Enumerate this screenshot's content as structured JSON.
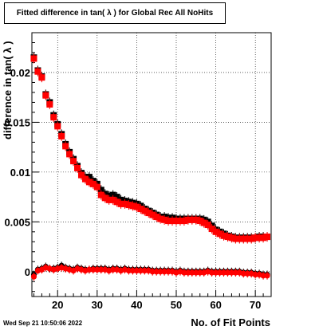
{
  "header": {
    "title": "Fitted difference in tan( λ ) for Global Rec All NoHits"
  },
  "footer": {
    "timestamp": "Wed Sep 21 10:50:06 2022"
  },
  "chart_data": {
    "type": "scatter",
    "title": "Fitted difference in tan( λ ) for Global Rec All NoHits",
    "xlabel": "No. of Fit Points",
    "ylabel": "difference in tan( λ )",
    "xlim": [
      13.5,
      74
    ],
    "ylim": [
      -0.0025,
      0.024
    ],
    "xticks": [
      20,
      30,
      40,
      50,
      60,
      70
    ],
    "yticks": [
      0,
      0.005,
      0.01,
      0.015,
      0.02
    ],
    "ytick_labels": [
      "0",
      "0.005",
      "0.01",
      "0.015",
      "0.02"
    ],
    "grid": true,
    "colors": {
      "black_series": "#000000",
      "red_series": "#ff0000"
    },
    "series": [
      {
        "marker": "square",
        "color": "#000000",
        "x": [
          14,
          15,
          16,
          17,
          18,
          19,
          20,
          21,
          22,
          23,
          24,
          25,
          26,
          27,
          28,
          29,
          30,
          31,
          32,
          33,
          34,
          35,
          36,
          37,
          38,
          39,
          40,
          41,
          42,
          43,
          44,
          45,
          46,
          47,
          48,
          49,
          50,
          51,
          52,
          53,
          54,
          55,
          56,
          57,
          58,
          59,
          60,
          61,
          62,
          63,
          64,
          65,
          66,
          67,
          68,
          69,
          70,
          71,
          72,
          73
        ],
        "y": [
          0.0215,
          0.0202,
          0.0196,
          0.0178,
          0.017,
          0.0157,
          0.0148,
          0.0138,
          0.0128,
          0.012,
          0.0113,
          0.0106,
          0.0099,
          0.0095,
          0.0095,
          0.0091,
          0.0088,
          0.0082,
          0.0078,
          0.0076,
          0.0077,
          0.0075,
          0.0072,
          0.0071,
          0.007,
          0.0069,
          0.0068,
          0.0066,
          0.0063,
          0.0061,
          0.0059,
          0.0057,
          0.0055,
          0.0055,
          0.0054,
          0.0054,
          0.0053,
          0.0053,
          0.0053,
          0.0053,
          0.0053,
          0.0053,
          0.0053,
          0.0052,
          0.005,
          0.0046,
          0.0042,
          0.004,
          0.0038,
          0.0036,
          0.0035,
          0.0034,
          0.0034,
          0.0034,
          0.0034,
          0.0034,
          0.0034,
          0.0035,
          0.0035,
          0.0035
        ]
      },
      {
        "marker": "square",
        "color": "#ff0000",
        "x": [
          14,
          15,
          16,
          17,
          18,
          19,
          20,
          21,
          22,
          23,
          24,
          25,
          26,
          27,
          28,
          29,
          30,
          31,
          32,
          33,
          34,
          35,
          36,
          37,
          38,
          39,
          40,
          41,
          42,
          43,
          44,
          45,
          46,
          47,
          48,
          49,
          50,
          51,
          52,
          53,
          54,
          55,
          56,
          57,
          58,
          59,
          60,
          61,
          62,
          63,
          64,
          65,
          66,
          67,
          68,
          69,
          70,
          71,
          72,
          73
        ],
        "y": [
          0.0214,
          0.0201,
          0.0195,
          0.0177,
          0.0168,
          0.0155,
          0.0146,
          0.0136,
          0.0126,
          0.0118,
          0.0111,
          0.0104,
          0.0097,
          0.0093,
          0.009,
          0.0088,
          0.0085,
          0.0077,
          0.0074,
          0.0072,
          0.0072,
          0.007,
          0.0068,
          0.0068,
          0.0067,
          0.0066,
          0.0065,
          0.0063,
          0.0061,
          0.0059,
          0.0057,
          0.0055,
          0.0053,
          0.0052,
          0.0051,
          0.0051,
          0.0051,
          0.0051,
          0.0051,
          0.0052,
          0.0052,
          0.0052,
          0.0051,
          0.0049,
          0.0047,
          0.0043,
          0.004,
          0.0038,
          0.0036,
          0.0035,
          0.0034,
          0.0033,
          0.0033,
          0.0033,
          0.0033,
          0.0033,
          0.0034,
          0.0034,
          0.0034,
          0.0035
        ]
      },
      {
        "marker": "circle",
        "color": "#000000",
        "x": [
          14,
          15,
          16,
          17,
          18,
          19,
          20,
          21,
          22,
          23,
          24,
          25,
          26,
          27,
          28,
          29,
          30,
          31,
          32,
          33,
          34,
          35,
          36,
          37,
          38,
          39,
          40,
          41,
          42,
          43,
          44,
          45,
          46,
          47,
          48,
          49,
          50,
          51,
          52,
          53,
          54,
          55,
          56,
          57,
          58,
          59,
          60,
          61,
          62,
          63,
          64,
          65,
          66,
          67,
          68,
          69,
          70,
          71,
          72,
          73
        ],
        "y": [
          -0.0003,
          0.0002,
          0.0003,
          0.0005,
          0.0003,
          0.0003,
          0.0004,
          0.0006,
          0.0004,
          0.0003,
          0.0002,
          0.0004,
          0.0003,
          0.0002,
          0.0002,
          0.0003,
          0.0003,
          0.0003,
          0.0003,
          0.0002,
          0.0003,
          0.0003,
          0.0002,
          0.0003,
          0.0002,
          0.0002,
          0.0002,
          0.0002,
          0.0002,
          0.0002,
          0.0001,
          0.0001,
          0.0001,
          0.0001,
          0.0001,
          0.0001,
          0.0,
          0.0001,
          0.0,
          0.0,
          0.0,
          0.0,
          0.0,
          0.0,
          0.0001,
          0.0,
          0.0,
          0.0,
          0.0,
          0.0,
          0.0,
          0.0,
          0.0,
          -0.0001,
          -0.0001,
          -0.0001,
          -0.0002,
          -0.0002,
          -0.0003,
          -0.0003
        ]
      },
      {
        "marker": "circle",
        "color": "#ff0000",
        "x": [
          14,
          15,
          16,
          17,
          18,
          19,
          20,
          21,
          22,
          23,
          24,
          25,
          26,
          27,
          28,
          29,
          30,
          31,
          32,
          33,
          34,
          35,
          36,
          37,
          38,
          39,
          40,
          41,
          42,
          43,
          44,
          45,
          46,
          47,
          48,
          49,
          50,
          51,
          52,
          53,
          54,
          55,
          56,
          57,
          58,
          59,
          60,
          61,
          62,
          63,
          64,
          65,
          66,
          67,
          68,
          69,
          70,
          71,
          72,
          73
        ],
        "y": [
          -0.0005,
          0.0001,
          0.0002,
          0.0004,
          0.0003,
          0.0002,
          0.0003,
          0.0004,
          0.0003,
          0.0002,
          0.0001,
          0.0003,
          0.0002,
          0.0001,
          0.0002,
          0.0002,
          0.0002,
          0.0002,
          0.0002,
          0.0001,
          0.0002,
          0.0002,
          0.0001,
          0.0002,
          0.0001,
          0.0001,
          0.0001,
          0.0001,
          0.0001,
          0.0001,
          0.0,
          0.0,
          0.0,
          0.0,
          0.0,
          0.0,
          -0.0001,
          0.0,
          -0.0001,
          -0.0001,
          -0.0001,
          -0.0001,
          -0.0001,
          -0.0001,
          0.0,
          -0.0001,
          -0.0001,
          -0.0001,
          -0.0001,
          -0.0001,
          -0.0001,
          -0.0001,
          -0.0001,
          -0.0002,
          -0.0002,
          -0.0002,
          -0.0003,
          -0.0003,
          -0.0004,
          -0.0004
        ]
      }
    ]
  }
}
